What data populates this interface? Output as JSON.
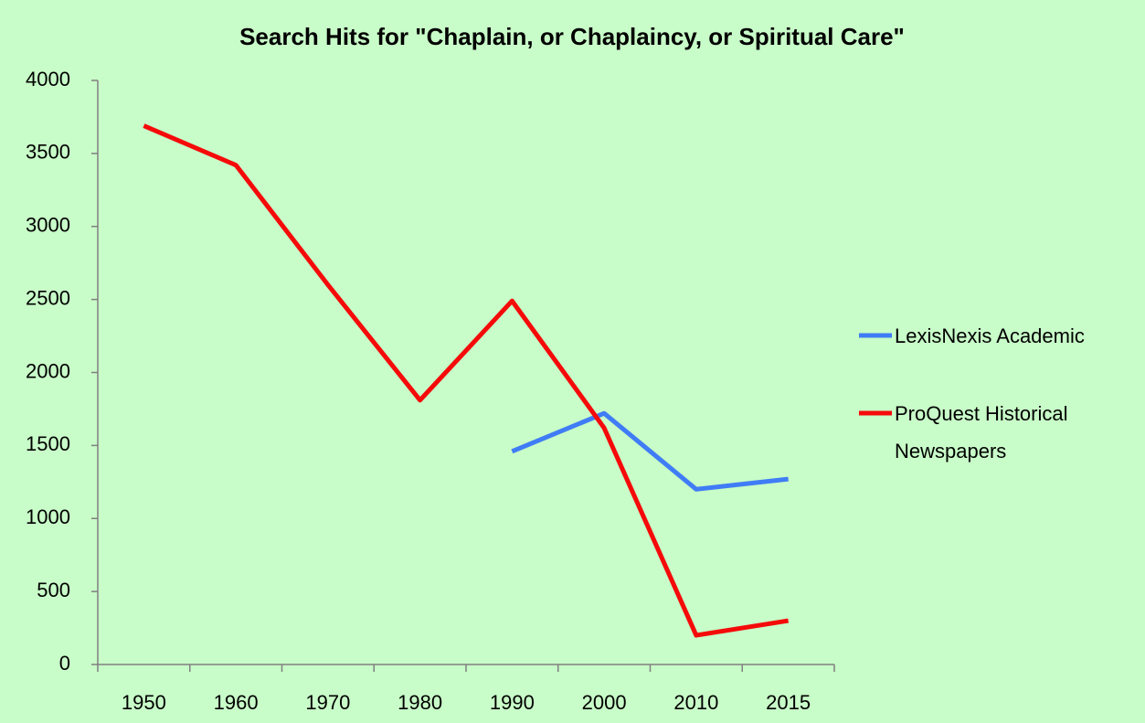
{
  "chart_data": {
    "type": "line",
    "title": "Search Hits for \"Chaplain, or Chaplaincy, or Spiritual Care\"",
    "categories": [
      "1950",
      "1960",
      "1970",
      "1980",
      "1990",
      "2000",
      "2010",
      "2015"
    ],
    "series": [
      {
        "name": "LexisNexis Academic",
        "color": "#3f7cf5",
        "values": [
          null,
          null,
          null,
          null,
          1460,
          1720,
          1200,
          1270
        ]
      },
      {
        "name": "ProQuest Historical Newspapers",
        "color": "#f50a0a",
        "values": [
          3690,
          3420,
          2600,
          1810,
          2490,
          1620,
          200,
          300
        ]
      }
    ],
    "ylim": [
      0,
      4000
    ],
    "yticks": [
      0,
      500,
      1000,
      1500,
      2000,
      2500,
      3000,
      3500,
      4000
    ],
    "grid": false,
    "legend": "right",
    "background": "#c8fcc8"
  }
}
